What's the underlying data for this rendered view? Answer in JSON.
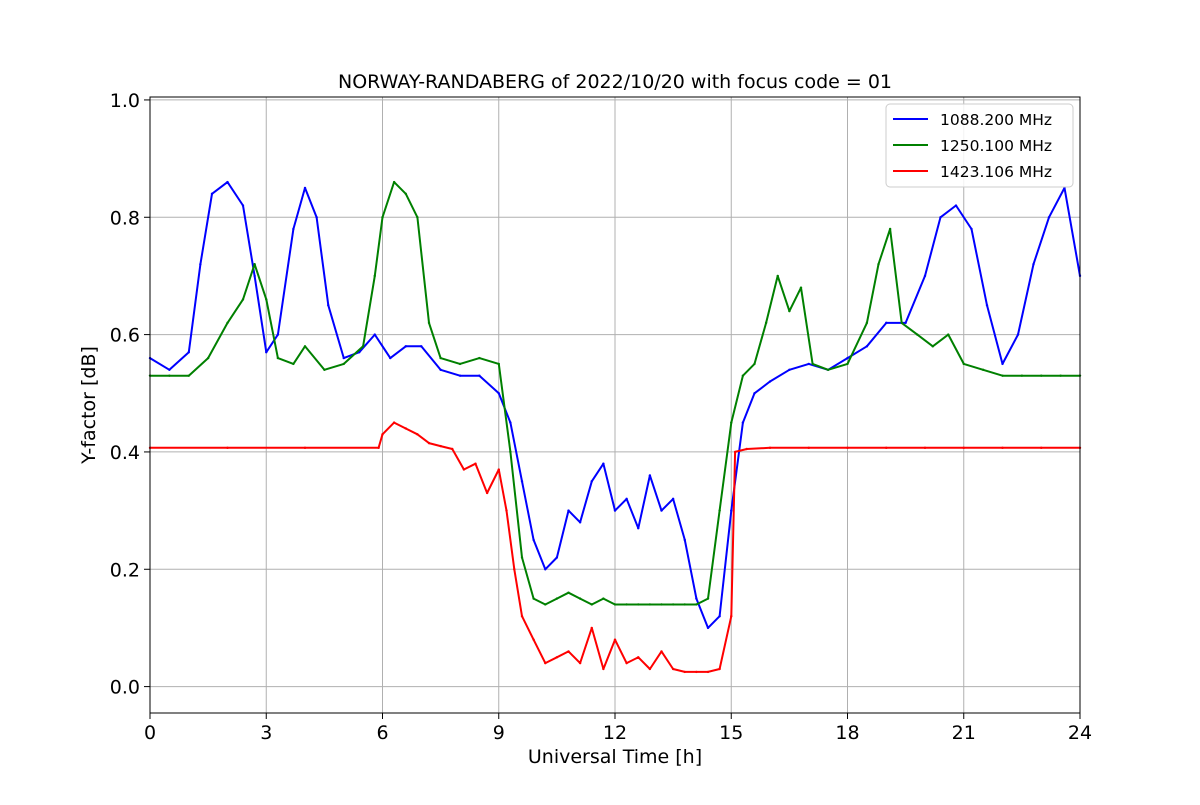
{
  "chart_data": {
    "type": "line",
    "title": "NORWAY-RANDABERG of 2022/10/20 with focus code = 01",
    "xlabel": "Universal Time [h]",
    "ylabel": "Y-factor [dB]",
    "xlim": [
      0,
      24
    ],
    "ylim": [
      -0.045,
      1.005
    ],
    "x_ticks": [
      0,
      3,
      6,
      9,
      12,
      15,
      18,
      21,
      24
    ],
    "y_ticks": [
      0.0,
      0.2,
      0.4,
      0.6,
      0.8,
      1.0
    ],
    "x_tick_labels": [
      "0",
      "3",
      "6",
      "9",
      "12",
      "15",
      "18",
      "21",
      "24"
    ],
    "y_tick_labels": [
      "0.0",
      "0.2",
      "0.4",
      "0.6",
      "0.8",
      "1.0"
    ],
    "grid": true,
    "legend_position": "top-right",
    "series": [
      {
        "name": "1088.200 MHz",
        "color": "#0000ff",
        "x": [
          0,
          0.5,
          1.0,
          1.3,
          1.6,
          2.0,
          2.4,
          2.7,
          3.0,
          3.3,
          3.7,
          4.0,
          4.3,
          4.6,
          5.0,
          5.4,
          5.8,
          6.2,
          6.6,
          7.0,
          7.5,
          8.0,
          8.5,
          9.0,
          9.3,
          9.6,
          9.9,
          10.2,
          10.5,
          10.8,
          11.1,
          11.4,
          11.7,
          12.0,
          12.3,
          12.6,
          12.9,
          13.2,
          13.5,
          13.8,
          14.1,
          14.4,
          14.7,
          15.0,
          15.3,
          15.6,
          16.0,
          16.5,
          17.0,
          17.5,
          18.0,
          18.5,
          19.0,
          19.5,
          20.0,
          20.4,
          20.8,
          21.2,
          21.6,
          22.0,
          22.4,
          22.8,
          23.2,
          23.6,
          24.0
        ],
        "y": [
          0.56,
          0.54,
          0.57,
          0.72,
          0.84,
          0.86,
          0.82,
          0.7,
          0.57,
          0.6,
          0.78,
          0.85,
          0.8,
          0.65,
          0.56,
          0.57,
          0.6,
          0.56,
          0.58,
          0.58,
          0.54,
          0.53,
          0.53,
          0.5,
          0.45,
          0.35,
          0.25,
          0.2,
          0.22,
          0.3,
          0.28,
          0.35,
          0.38,
          0.3,
          0.32,
          0.27,
          0.36,
          0.3,
          0.32,
          0.25,
          0.15,
          0.1,
          0.12,
          0.3,
          0.45,
          0.5,
          0.52,
          0.54,
          0.55,
          0.54,
          0.56,
          0.58,
          0.62,
          0.62,
          0.7,
          0.8,
          0.82,
          0.78,
          0.65,
          0.55,
          0.6,
          0.72,
          0.8,
          0.85,
          0.7
        ]
      },
      {
        "name": "1250.100 MHz",
        "color": "#008000",
        "x": [
          0,
          0.5,
          1.0,
          1.5,
          2.0,
          2.4,
          2.7,
          3.0,
          3.3,
          3.7,
          4.0,
          4.5,
          5.0,
          5.5,
          5.8,
          6.0,
          6.3,
          6.6,
          6.9,
          7.2,
          7.5,
          8.0,
          8.5,
          9.0,
          9.3,
          9.6,
          9.9,
          10.2,
          10.5,
          10.8,
          11.1,
          11.4,
          11.7,
          12.0,
          12.3,
          12.6,
          12.9,
          13.2,
          13.5,
          13.8,
          14.1,
          14.4,
          14.7,
          15.0,
          15.3,
          15.6,
          15.9,
          16.2,
          16.5,
          16.8,
          17.1,
          17.5,
          18.0,
          18.5,
          18.8,
          19.1,
          19.4,
          19.8,
          20.2,
          20.6,
          21.0,
          21.5,
          22.0,
          22.5,
          23.0,
          23.5,
          24.0
        ],
        "y": [
          0.53,
          0.53,
          0.53,
          0.56,
          0.62,
          0.66,
          0.72,
          0.66,
          0.56,
          0.55,
          0.58,
          0.54,
          0.55,
          0.58,
          0.7,
          0.8,
          0.86,
          0.84,
          0.8,
          0.62,
          0.56,
          0.55,
          0.56,
          0.55,
          0.4,
          0.22,
          0.15,
          0.14,
          0.15,
          0.16,
          0.15,
          0.14,
          0.15,
          0.14,
          0.14,
          0.14,
          0.14,
          0.14,
          0.14,
          0.14,
          0.14,
          0.15,
          0.3,
          0.45,
          0.53,
          0.55,
          0.62,
          0.7,
          0.64,
          0.68,
          0.55,
          0.54,
          0.55,
          0.62,
          0.72,
          0.78,
          0.62,
          0.6,
          0.58,
          0.6,
          0.55,
          0.54,
          0.53,
          0.53,
          0.53,
          0.53,
          0.53
        ]
      },
      {
        "name": "1423.106 MHz",
        "color": "#ff0000",
        "x": [
          0,
          2,
          4,
          5.9,
          6.0,
          6.3,
          6.6,
          6.9,
          7.2,
          7.5,
          7.8,
          8.1,
          8.4,
          8.7,
          9.0,
          9.2,
          9.4,
          9.6,
          9.9,
          10.2,
          10.5,
          10.8,
          11.1,
          11.4,
          11.7,
          12.0,
          12.3,
          12.6,
          12.9,
          13.2,
          13.5,
          13.8,
          14.1,
          14.4,
          14.7,
          15.0,
          15.1,
          15.4,
          16.0,
          17.0,
          18.0,
          19.0,
          20.0,
          21.0,
          22.0,
          23.0,
          24.0
        ],
        "y": [
          0.407,
          0.407,
          0.407,
          0.407,
          0.43,
          0.45,
          0.44,
          0.43,
          0.415,
          0.41,
          0.405,
          0.37,
          0.38,
          0.33,
          0.37,
          0.3,
          0.2,
          0.12,
          0.08,
          0.04,
          0.05,
          0.06,
          0.04,
          0.1,
          0.03,
          0.08,
          0.04,
          0.05,
          0.03,
          0.06,
          0.03,
          0.025,
          0.025,
          0.025,
          0.03,
          0.12,
          0.4,
          0.405,
          0.407,
          0.407,
          0.407,
          0.407,
          0.407,
          0.407,
          0.407,
          0.407,
          0.407
        ]
      }
    ]
  }
}
